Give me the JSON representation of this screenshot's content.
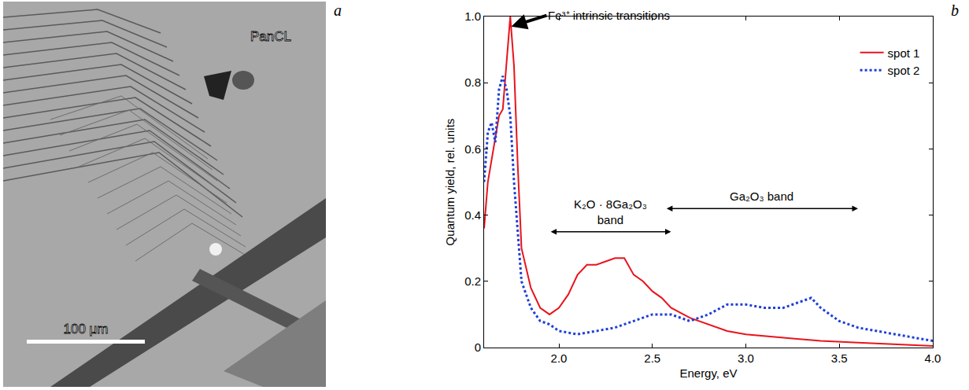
{
  "panel_letters": [
    "a",
    "b"
  ],
  "image_panel": {
    "label": "PanCL",
    "scale_bar_label": "100 μm"
  },
  "chart_data": {
    "type": "line",
    "x_label": "Energy, eV",
    "y_label": "Quantum yield, rel. units",
    "xlim": [
      1.6,
      4.0
    ],
    "xticks": [
      {
        "value": 2,
        "label": "2.0"
      },
      {
        "value": 2.5,
        "label": "2.5"
      },
      {
        "value": 3,
        "label": "3.0"
      },
      {
        "value": 3.5,
        "label": "3.5"
      },
      {
        "value": 4,
        "label": "4.0"
      }
    ],
    "ylim": [
      0,
      1
    ],
    "yticks": [
      0,
      0.2,
      0.4,
      0.6,
      0.8,
      {
        "value": 1,
        "label": "1.0"
      }
    ],
    "grid": false,
    "legend": "upper right",
    "series": [
      {
        "name": "spot 1",
        "color": "#e8141c",
        "line_style": "solid",
        "x": [
          1.6,
          1.62,
          1.65,
          1.68,
          1.7,
          1.72,
          1.74,
          1.76,
          1.78,
          1.8,
          1.85,
          1.9,
          1.95,
          2.0,
          2.05,
          2.1,
          2.15,
          2.2,
          2.25,
          2.3,
          2.35,
          2.4,
          2.45,
          2.5,
          2.55,
          2.6,
          2.7,
          2.8,
          2.9,
          3.0,
          3.2,
          3.4,
          3.6,
          3.8,
          4.0
        ],
        "values": [
          0.36,
          0.5,
          0.6,
          0.7,
          0.72,
          0.85,
          1.0,
          0.85,
          0.55,
          0.3,
          0.18,
          0.12,
          0.1,
          0.12,
          0.16,
          0.22,
          0.25,
          0.25,
          0.26,
          0.27,
          0.27,
          0.22,
          0.2,
          0.17,
          0.15,
          0.12,
          0.09,
          0.07,
          0.05,
          0.04,
          0.03,
          0.02,
          0.015,
          0.01,
          0.005
        ]
      },
      {
        "name": "spot 2",
        "color": "#1f3fd6",
        "line_style": "dot",
        "x": [
          1.6,
          1.62,
          1.64,
          1.66,
          1.68,
          1.7,
          1.72,
          1.74,
          1.76,
          1.78,
          1.8,
          1.85,
          1.9,
          1.95,
          2.0,
          2.1,
          2.2,
          2.3,
          2.4,
          2.5,
          2.6,
          2.7,
          2.8,
          2.9,
          3.0,
          3.1,
          3.2,
          3.3,
          3.35,
          3.4,
          3.5,
          3.6,
          3.7,
          3.8,
          3.9,
          4.0
        ],
        "values": [
          0.5,
          0.65,
          0.68,
          0.62,
          0.78,
          0.82,
          0.78,
          0.7,
          0.5,
          0.35,
          0.2,
          0.12,
          0.08,
          0.07,
          0.05,
          0.04,
          0.05,
          0.06,
          0.08,
          0.1,
          0.1,
          0.08,
          0.1,
          0.13,
          0.13,
          0.12,
          0.12,
          0.14,
          0.15,
          0.12,
          0.08,
          0.06,
          0.05,
          0.04,
          0.03,
          0.02
        ]
      }
    ],
    "annotations": [
      {
        "text_lines": [
          "Fe³⁺ intrinsic transitions"
        ],
        "x": 1.745,
        "y": 0.97
      },
      {
        "text_lines": [
          "K₂O · 8Ga₂O₃",
          "band"
        ],
        "x_range": [
          1.95,
          2.6
        ],
        "y": 0.35
      },
      {
        "text_lines": [
          "Ga₂O₃ band"
        ],
        "x_range": [
          2.57,
          3.6
        ],
        "y": 0.42
      }
    ]
  }
}
